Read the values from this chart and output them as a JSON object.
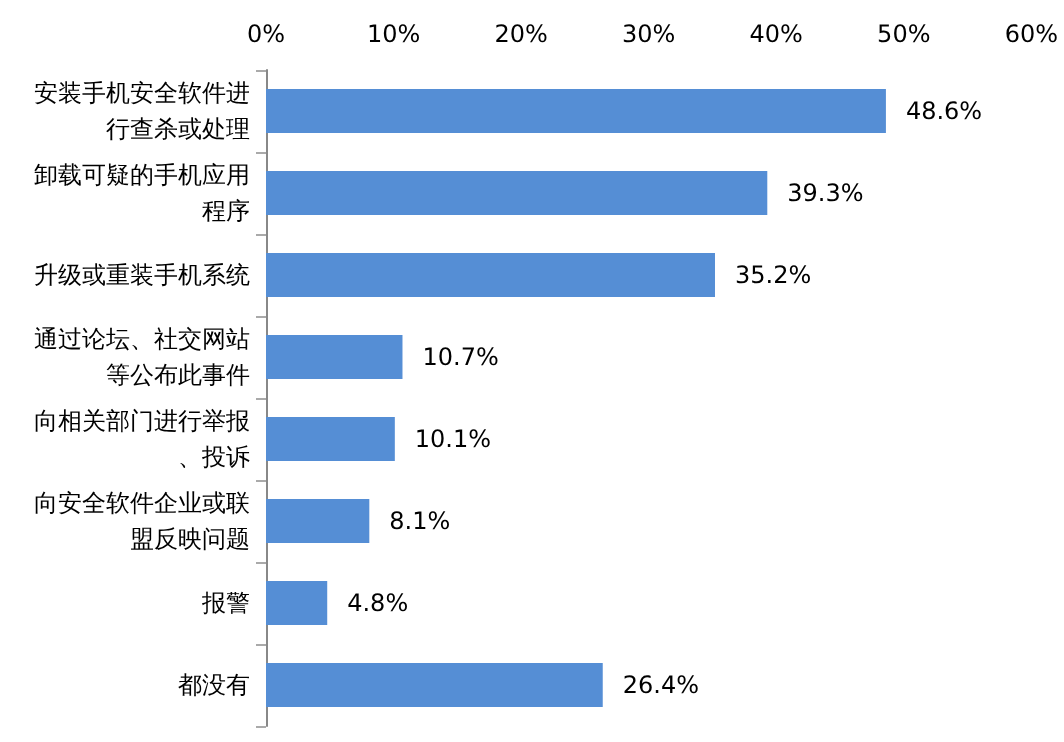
{
  "chart_data": {
    "type": "bar",
    "orientation": "horizontal",
    "categories": [
      "安装手机安全软件进行查杀或处理",
      "卸载可疑的手机应用程序",
      "升级或重装手机系统",
      "通过论坛、社交网站等公布此事件",
      "向相关部门进行举报、投诉",
      "向安全软件企业或联盟反映问题",
      "报警",
      "都没有"
    ],
    "values": [
      48.6,
      39.3,
      35.2,
      10.7,
      10.1,
      8.1,
      4.8,
      26.4
    ],
    "value_labels": [
      "48.6%",
      "39.3%",
      "35.2%",
      "10.7%",
      "10.1%",
      "8.1%",
      "4.8%",
      "26.4%"
    ],
    "color": "#558ed5",
    "xlim": [
      0,
      60
    ],
    "xticks": [
      {
        "value": 0,
        "label": "0%"
      },
      {
        "value": 10,
        "label": "10%"
      },
      {
        "value": 20,
        "label": "20%"
      },
      {
        "value": 30,
        "label": "30%"
      },
      {
        "value": 40,
        "label": "40%"
      },
      {
        "value": 50,
        "label": "50%"
      },
      {
        "value": 60,
        "label": "60%"
      }
    ],
    "grid": false
  }
}
